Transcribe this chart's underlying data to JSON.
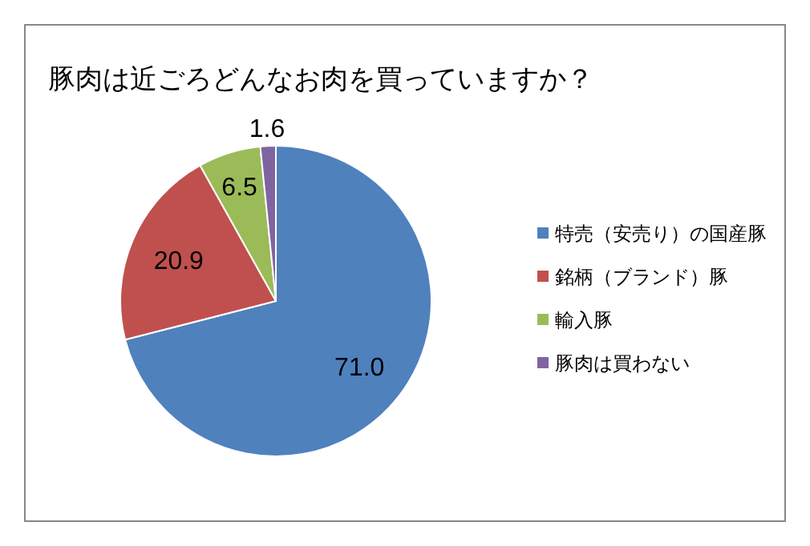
{
  "chart_data": {
    "type": "pie",
    "title": "豚肉は近ごろどんなお肉を買っていますか？",
    "categories": [
      "特売（安売り）の国産豚",
      "銘柄（ブランド）豚",
      "輸入豚",
      "豚肉は買わない"
    ],
    "values": [
      71.0,
      20.9,
      6.5,
      1.6
    ],
    "value_labels": [
      "71.0",
      "20.9",
      "6.5",
      "1.6"
    ],
    "colors": [
      "#4f81bd",
      "#c0504d",
      "#9bbb59",
      "#8064a2"
    ],
    "legend": "right"
  }
}
